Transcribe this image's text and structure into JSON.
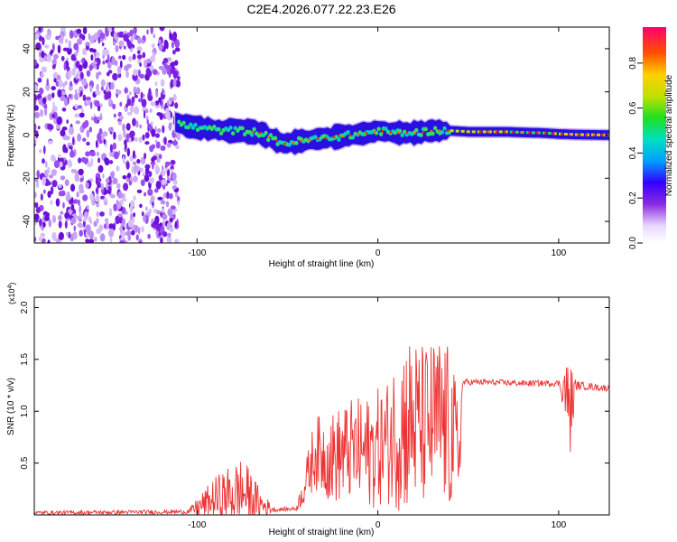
{
  "title": "C2E4.2026.077.22.23.E26",
  "chart_data": [
    {
      "type": "heatmap",
      "name": "spectrogram",
      "xlabel": "Height of straight line (km)",
      "ylabel": "Frequency (Hz)",
      "xlim": [
        -190,
        128
      ],
      "ylim": [
        -50,
        50
      ],
      "xticks": [
        -100,
        0,
        100
      ],
      "yticks": [
        -40,
        -20,
        0,
        20,
        40
      ],
      "colorbar": {
        "label": "Normalized spectral amplitude",
        "range": [
          0,
          0.96
        ],
        "ticks": [
          0.0,
          0.2,
          0.4,
          0.6,
          0.8
        ]
      },
      "ridge_x": [
        -112,
        -105,
        -95,
        -85,
        -75,
        -65,
        -58,
        -52,
        -45,
        -35,
        -25,
        -15,
        -5,
        0,
        10,
        20,
        30,
        40,
        50,
        60,
        70,
        80,
        90,
        100,
        110,
        128
      ],
      "ridge_y": [
        6,
        4,
        3,
        2,
        2,
        1,
        -2,
        -4,
        -3,
        -2,
        -1,
        0,
        1,
        2,
        1,
        1,
        2,
        2,
        1.5,
        1.5,
        1.5,
        1.2,
        1,
        0.5,
        0.2,
        0
      ]
    },
    {
      "type": "line",
      "name": "snr",
      "xlabel": "Height of straight line (km)",
      "ylabel": "SNR (10 * v/v)",
      "multiplier_label": "(x10",
      "multiplier_exp": "4",
      "multiplier_close": ")",
      "xlim": [
        -190,
        128
      ],
      "ylim": [
        0,
        2.1
      ],
      "xticks": [
        -100,
        0,
        100
      ],
      "yticks": [
        0.5,
        1.0,
        1.5,
        2.0
      ],
      "series": [
        {
          "name": "SNR",
          "color": "#ee3333",
          "envelope_x": [
            -190,
            -105,
            -90,
            -75,
            -65,
            -57,
            -45,
            -40,
            -35,
            -25,
            -15,
            -5,
            5,
            15,
            25,
            35,
            40,
            45,
            47,
            60,
            80,
            100,
            104,
            106,
            110,
            128
          ],
          "envelope_base": [
            0.02,
            0.03,
            0.15,
            0.22,
            0.1,
            0.05,
            0.06,
            0.3,
            0.6,
            0.55,
            0.62,
            0.6,
            0.7,
            0.9,
            0.85,
            0.9,
            0.8,
            0.6,
            1.28,
            1.28,
            1.27,
            1.27,
            1.2,
            1.0,
            1.25,
            1.22
          ],
          "envelope_amp": [
            0.02,
            0.02,
            0.22,
            0.35,
            0.15,
            0.02,
            0.02,
            0.2,
            0.35,
            0.45,
            0.5,
            0.55,
            0.6,
            0.9,
            0.8,
            0.85,
            0.8,
            0.5,
            0.03,
            0.03,
            0.03,
            0.03,
            0.3,
            0.5,
            0.04,
            0.03
          ]
        }
      ]
    }
  ]
}
